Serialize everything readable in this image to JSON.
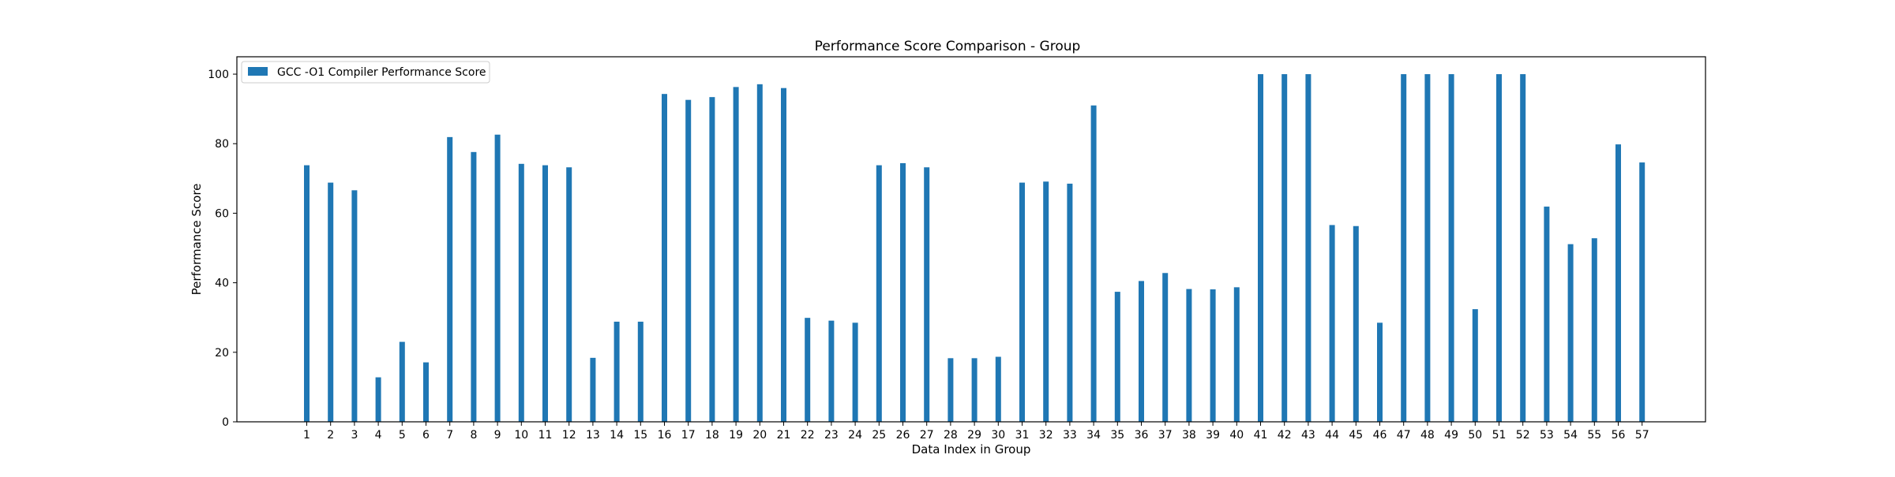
{
  "chart_data": {
    "type": "bar",
    "title": "Performance Score Comparison - Group",
    "xlabel": "Data Index in Group",
    "ylabel": "Performance Score",
    "ylim": [
      0,
      105
    ],
    "yticks": [
      0,
      20,
      40,
      60,
      80,
      100
    ],
    "grid": false,
    "legend_position": "top-left",
    "categories": [
      "1",
      "2",
      "3",
      "4",
      "5",
      "6",
      "7",
      "8",
      "9",
      "10",
      "11",
      "12",
      "13",
      "14",
      "15",
      "16",
      "17",
      "18",
      "19",
      "20",
      "21",
      "22",
      "23",
      "24",
      "25",
      "26",
      "27",
      "28",
      "29",
      "30",
      "31",
      "32",
      "33",
      "34",
      "35",
      "36",
      "37",
      "38",
      "39",
      "40",
      "41",
      "42",
      "43",
      "44",
      "45",
      "46",
      "47",
      "48",
      "49",
      "50",
      "51",
      "52",
      "53",
      "54",
      "55",
      "56",
      "57"
    ],
    "series": [
      {
        "name": "GCC -O1 Compiler Performance Score",
        "color": "#1f77b4",
        "values": [
          73.8,
          68.8,
          66.6,
          12.8,
          23.0,
          17.1,
          81.9,
          77.6,
          82.6,
          74.2,
          73.8,
          73.2,
          18.4,
          28.8,
          28.8,
          94.3,
          92.6,
          93.4,
          96.3,
          97.1,
          96.0,
          29.9,
          29.1,
          28.5,
          73.8,
          74.4,
          73.2,
          18.3,
          18.3,
          18.7,
          68.8,
          69.1,
          68.5,
          91.0,
          37.4,
          40.5,
          42.8,
          38.2,
          38.1,
          38.7,
          100,
          100,
          100,
          56.6,
          56.3,
          28.5,
          100,
          100,
          100,
          32.4,
          100,
          100,
          61.9,
          51.1,
          52.8,
          79.8,
          74.6
        ]
      }
    ]
  }
}
